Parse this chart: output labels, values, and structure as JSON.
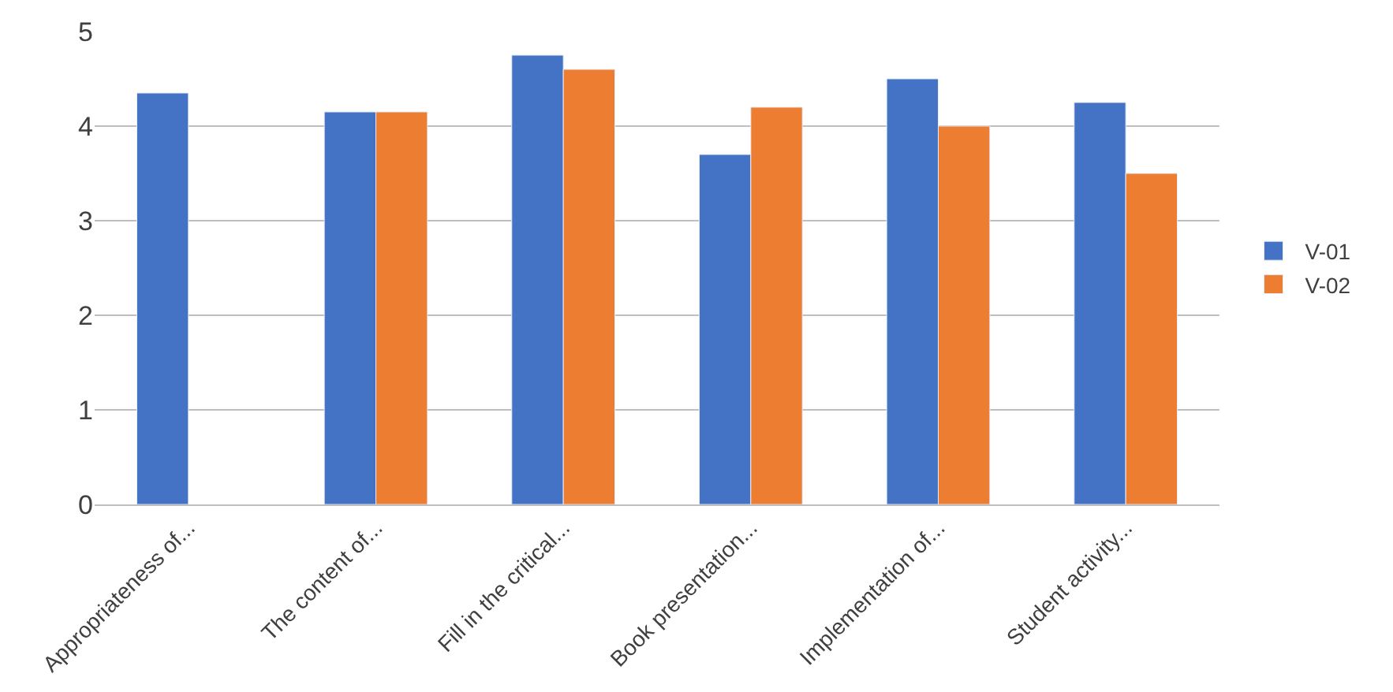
{
  "chart_data": {
    "type": "bar",
    "categories": [
      "Appropriateness of...",
      "The content of...",
      "Fill in the critical...",
      "Book presentation...",
      "Implementation of...",
      "Student activity..."
    ],
    "series": [
      {
        "name": "V-01",
        "color": "#4472c4",
        "values": [
          4.35,
          4.15,
          4.75,
          3.7,
          4.5,
          4.25
        ]
      },
      {
        "name": "V-02",
        "color": "#ed7d31",
        "values": [
          null,
          4.15,
          4.6,
          4.2,
          4.0,
          3.5
        ]
      }
    ],
    "ylim": [
      0,
      5
    ],
    "yticks": [
      0,
      1,
      2,
      3,
      4,
      5
    ],
    "grid": "y",
    "legend": "right"
  }
}
